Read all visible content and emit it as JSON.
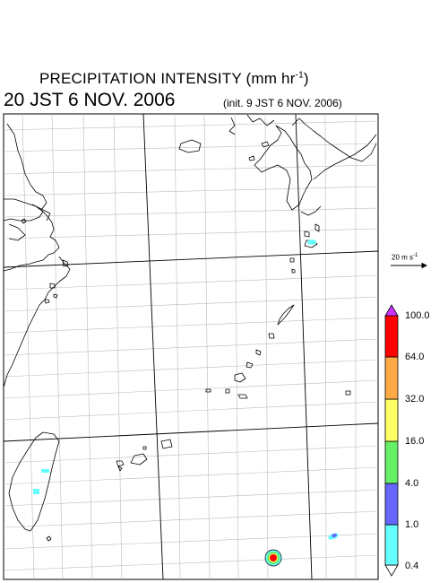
{
  "title": {
    "main": "PRECIPITATION INTENSITY (mm hr",
    "exponent": "-1",
    "close": ")"
  },
  "valid_time": "20 JST 6 NOV. 2006",
  "init_time": "(init. 9 JST 6 NOV. 2006)",
  "vector_reference": {
    "label": "20 m s",
    "exponent": "-1"
  },
  "colorbar": {
    "levels": [
      "0.4",
      "1.0",
      "4.0",
      "16.0",
      "32.0",
      "64.0",
      "100.0"
    ],
    "colors": [
      "#ffffff",
      "#66ffff",
      "#6666ff",
      "#66ee66",
      "#ffff66",
      "#ffaa44",
      "#ff0000",
      "#cc33ff"
    ]
  },
  "precipitation_colors": {
    "light": "#66ffff",
    "moderate": "#6666ff",
    "heavy": "#ff0000",
    "mid": "#ffff66",
    "ring": "#66ee66"
  }
}
